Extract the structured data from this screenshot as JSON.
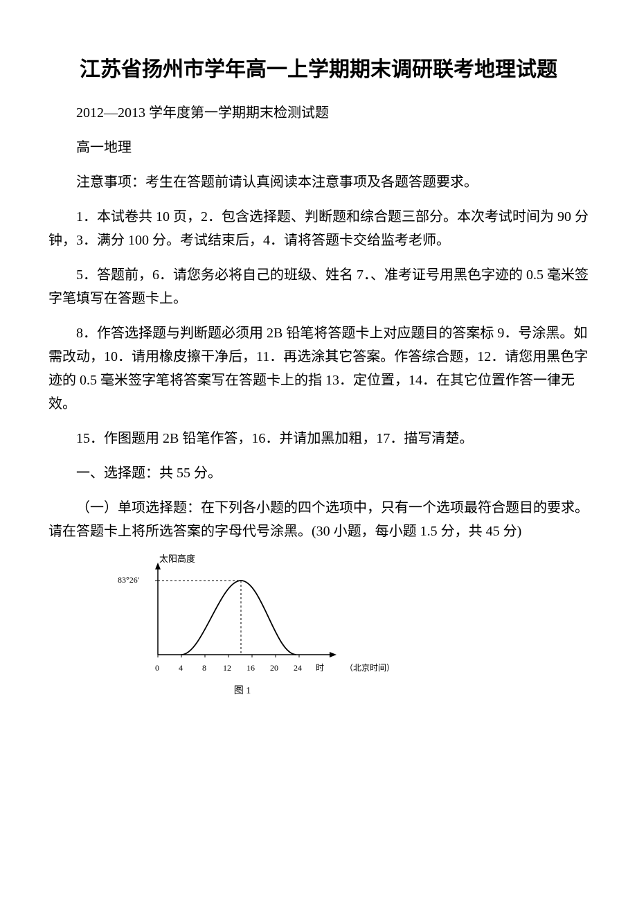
{
  "title": "江苏省扬州市学年高一上学期期末调研联考地理试题",
  "subtitle": "2012—2013 学年度第一学期期末检测试题",
  "subject": "高一地理",
  "notice": "注意事项：考生在答题前请认真阅读本注意事项及各题答题要求。",
  "items": {
    "i1": "1．本试卷共 10 页，2．包含选择题、判断题和综合题三部分。本次考试时间为 90 分钟，3．满分 100 分。考试结束后，4．请将答题卡交给监考老师。",
    "i2": "5．答题前，6．请您务必将自己的班级、姓名 7．、准考证号用黑色字迹的 0.5 毫米签字笔填写在答题卡上。",
    "i3": "8．作答选择题与判断题必须用 2B 铅笔将答题卡上对应题目的答案标 9．号涂黑。如需改动，10．请用橡皮擦干净后，11．再选涂其它答案。作答综合题，12．请您用黑色字迹的 0.5 毫米签字笔将答案写在答题卡上的指 13．定位置，14．在其它位置作答一律无效。",
    "i4": "15．作图题用 2B 铅笔作答，16．并请加黑加粗，17．描写清楚。"
  },
  "section1": "一、选择题：共 55 分。",
  "section1sub": "（一）单项选择题：在下列各小题的四个选项中，只有一个选项最符合题目的要求。请在答题卡上将所选答案的字母代号涂黑。(30 小题，每小题 1.5 分，共 45 分)",
  "chart": {
    "type": "line",
    "y_label": "太阳高度",
    "y_tick_label": "83°26'",
    "x_label": "（北京时间）",
    "x_ticks": [
      "0",
      "4",
      "8",
      "12",
      "16",
      "20",
      "24"
    ],
    "x_tick_positions": [
      38,
      72,
      106,
      140,
      174,
      208,
      242
    ],
    "x_unit": "时",
    "x_unit_position": 266,
    "caption": "图 1",
    "axis_color": "#000000",
    "curve_color": "#000000",
    "dash_color": "#000000",
    "background_color": "#ffffff",
    "plot": {
      "x_start": 38,
      "x_end": 290,
      "y_baseline": 145,
      "y_top": 18,
      "peak_x": 158,
      "peak_y": 38,
      "y_tick_y": 38,
      "curve_start_x": 72,
      "curve_end_x": 238
    }
  }
}
